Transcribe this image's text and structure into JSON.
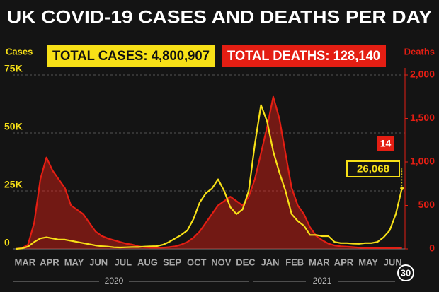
{
  "chart_data": {
    "type": "line",
    "title": "UK COVID-19 CASES AND DEATHS PER DAY",
    "y_label": "Cases",
    "y2_label": "Deaths",
    "annotations": {
      "total_cases": "TOTAL CASES: 4,800,907",
      "total_deaths": "TOTAL DEATHS: 128,140",
      "end_day": "30"
    },
    "years": [
      "2020",
      "2021"
    ],
    "categories": [
      null,
      "MAR",
      null,
      null,
      null,
      "APR",
      null,
      null,
      null,
      "MAY",
      null,
      null,
      null,
      "JUN",
      null,
      null,
      null,
      "JUL",
      null,
      null,
      null,
      "AUG",
      null,
      null,
      null,
      "SEP",
      null,
      null,
      null,
      "OCT",
      null,
      null,
      null,
      "NOV",
      null,
      null,
      null,
      "DEC",
      null,
      null,
      null,
      "JAN",
      null,
      null,
      null,
      "FEB",
      null,
      null,
      null,
      "MAR",
      null,
      null,
      null,
      "APR",
      null,
      null,
      null,
      "MAY",
      null,
      null,
      null,
      "JUN",
      null,
      null
    ],
    "series": [
      {
        "name": "Deaths",
        "color": "#e41e13",
        "axis": "y2",
        "area": true,
        "values": [
          0,
          10,
          50,
          300,
          800,
          1050,
          900,
          800,
          700,
          500,
          450,
          400,
          300,
          200,
          150,
          120,
          100,
          80,
          60,
          50,
          30,
          20,
          15,
          15,
          15,
          20,
          30,
          50,
          80,
          130,
          200,
          300,
          400,
          500,
          550,
          600,
          550,
          500,
          600,
          800,
          1100,
          1400,
          1750,
          1500,
          1100,
          700,
          500,
          400,
          250,
          150,
          100,
          60,
          40,
          30,
          25,
          20,
          15,
          10,
          10,
          10,
          10,
          10,
          10,
          14
        ]
      },
      {
        "name": "Cases",
        "color": "#f7e017",
        "area": false,
        "values": [
          0,
          200,
          1000,
          3000,
          4500,
          5000,
          4500,
          4000,
          4000,
          3500,
          3000,
          2500,
          2000,
          1500,
          1200,
          1000,
          700,
          600,
          700,
          800,
          800,
          1000,
          1100,
          1200,
          1800,
          3000,
          4500,
          6000,
          8000,
          13000,
          20000,
          24000,
          26000,
          30000,
          25000,
          18000,
          15000,
          17000,
          25000,
          45000,
          62000,
          55000,
          42000,
          33000,
          25000,
          15000,
          12000,
          10000,
          6000,
          6000,
          5500,
          5500,
          3000,
          2500,
          2500,
          2300,
          2200,
          2500,
          2500,
          3000,
          5000,
          8000,
          15000,
          26068
        ],
        "value_labels": [
          null,
          null,
          null,
          null,
          null,
          null,
          null,
          null,
          null,
          null,
          null,
          null,
          null,
          null,
          null,
          null,
          null,
          null,
          null,
          null,
          null,
          null,
          null,
          null,
          null,
          null,
          null,
          null,
          null,
          null,
          null,
          null,
          null,
          null,
          null,
          null,
          null,
          null,
          null,
          null,
          null,
          null,
          null,
          null,
          null,
          null,
          null,
          null,
          null,
          null,
          null,
          null,
          null,
          null,
          null,
          null,
          null,
          null,
          null,
          null,
          null,
          null,
          null,
          "26,068"
        ]
      }
    ],
    "ylim": [
      0,
      75000
    ],
    "yticks": [
      0,
      {
        "value": 25000,
        "label": "25K"
      },
      {
        "value": 50000,
        "label": "50K"
      },
      {
        "value": 75000,
        "label": "75K"
      }
    ],
    "y2lim": [
      0,
      2000
    ],
    "y2ticks": [
      0,
      500,
      {
        "value": 1000,
        "label": "1,000"
      },
      {
        "value": 1500,
        "label": "1,500"
      },
      {
        "value": 2000,
        "label": "2,000"
      }
    ],
    "grid": true
  }
}
